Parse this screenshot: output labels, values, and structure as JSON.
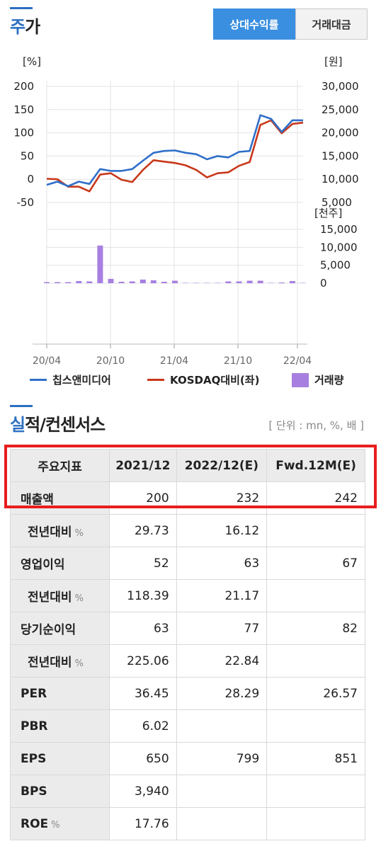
{
  "header": {
    "title_accent": "주",
    "title_rest": "가",
    "toggle_relative": "상대수익률",
    "toggle_volume": "거래대금"
  },
  "chart_data": {
    "type": "line",
    "x_tick_labels": [
      "20/04",
      "20/10",
      "21/04",
      "21/10",
      "22/04"
    ],
    "left_axis": {
      "unit_label": "[%]",
      "ticks": [
        "200",
        "150",
        "100",
        "50",
        "0",
        "-50"
      ],
      "range": [
        -50,
        200
      ]
    },
    "right_axis": {
      "unit_label": "[원]",
      "ticks": [
        "30,000",
        "25,000",
        "20,000",
        "15,000",
        "10,000",
        "5,000"
      ],
      "range": [
        5000,
        30000
      ]
    },
    "volume_axis": {
      "unit_label": "[천주]",
      "ticks": [
        "15,000",
        "10,000",
        "5,000",
        "0"
      ],
      "range": [
        0,
        15000
      ]
    },
    "series": [
      {
        "name": "칩스앤미디어",
        "color": "#2f6fc9",
        "values": [
          -12,
          -5,
          -15,
          -5,
          -10,
          22,
          18,
          18,
          22,
          40,
          57,
          61,
          62,
          57,
          54,
          43,
          50,
          47,
          59,
          61,
          138,
          130,
          102,
          127,
          127
        ]
      },
      {
        "name": "KOSDAQ대비(좌)",
        "color": "#c8381a",
        "values": [
          1,
          0,
          -16,
          -16,
          -26,
          10,
          13,
          -1,
          -6,
          20,
          41,
          38,
          35,
          30,
          20,
          4,
          13,
          15,
          29,
          37,
          117,
          127,
          99,
          119,
          122
        ]
      }
    ],
    "volume": {
      "name": "거래량",
      "color": "#a77fe0",
      "values": [
        300,
        300,
        300,
        600,
        500,
        10500,
        1200,
        400,
        500,
        1000,
        800,
        400,
        700,
        100,
        100,
        100,
        100,
        500,
        500,
        700,
        700,
        100,
        200,
        600,
        100
      ]
    }
  },
  "legend": {
    "series1": "칩스앤미디어",
    "series2": "KOSDAQ대비(좌)",
    "volume": "거래량"
  },
  "earnings": {
    "title_accent": "실",
    "title_rest": "적/컨센서스",
    "units": "[ 단위 : mn, %, 배 ]",
    "columns": [
      "주요지표",
      "2021/12",
      "2022/12(E)",
      "Fwd.12M(E)"
    ],
    "rows": [
      {
        "label": "매출액",
        "pct": "",
        "values": [
          "200",
          "232",
          "242"
        ]
      },
      {
        "label": "전년대비",
        "pct": "%",
        "values": [
          "29.73",
          "16.12",
          ""
        ]
      },
      {
        "label": "영업이익",
        "pct": "",
        "values": [
          "52",
          "63",
          "67"
        ]
      },
      {
        "label": "전년대비",
        "pct": "%",
        "values": [
          "118.39",
          "21.17",
          ""
        ]
      },
      {
        "label": "당기순이익",
        "pct": "",
        "values": [
          "63",
          "77",
          "82"
        ]
      },
      {
        "label": "전년대비",
        "pct": "%",
        "values": [
          "225.06",
          "22.84",
          ""
        ]
      },
      {
        "label": "PER",
        "pct": "",
        "values": [
          "36.45",
          "28.29",
          "26.57"
        ]
      },
      {
        "label": "PBR",
        "pct": "",
        "values": [
          "6.02",
          "",
          ""
        ]
      },
      {
        "label": "EPS",
        "pct": "",
        "values": [
          "650",
          "799",
          "851"
        ]
      },
      {
        "label": "BPS",
        "pct": "",
        "values": [
          "3,940",
          "",
          ""
        ]
      },
      {
        "label": "ROE",
        "pct": "%",
        "values": [
          "17.76",
          "",
          ""
        ]
      }
    ]
  }
}
